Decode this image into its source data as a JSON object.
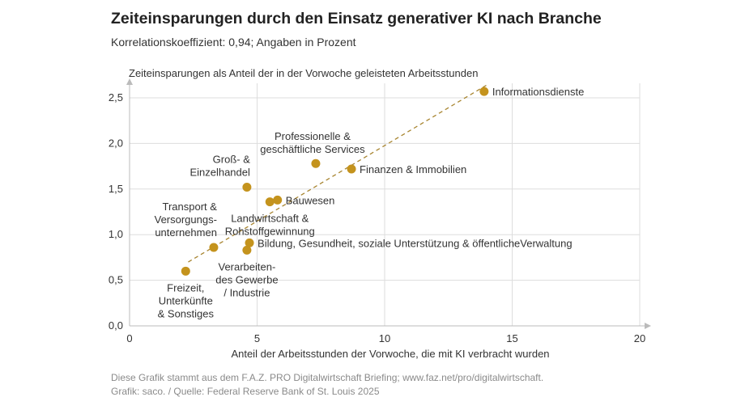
{
  "title": "Zeiteinsparungen durch den Einsatz generativer KI nach Branche",
  "subtitle": "Korrelationskoeffizient: 0,94; Angaben in Prozent",
  "footer": {
    "line1": "Diese Grafik stammt aus dem F.A.Z. PRO Digitalwirtschaft Briefing; www.faz.net/pro/digitalwirtschaft.",
    "line2": "Grafik: saco. / Quelle: Federal Reserve Bank of St. Louis 2025"
  },
  "colors": {
    "points": "#c4931d",
    "trend": "#a88530",
    "grid": "#dddddd",
    "axis": "#bbbbbb",
    "text": "#333333"
  },
  "chart_data": {
    "type": "scatter",
    "xlabel": "Anteil der Arbeitsstunden der Vorwoche, die mit KI verbracht wurden",
    "ylabel": "Zeiteinsparungen als Anteil der in der Vorwoche geleisteten Arbeitsstunden",
    "xlim": [
      0,
      20
    ],
    "ylim": [
      0,
      2.6
    ],
    "x_ticks": [
      0,
      5,
      10,
      15,
      20
    ],
    "x_tick_labels": [
      "0",
      "5",
      "10",
      "15",
      "20"
    ],
    "y_ticks": [
      0,
      0.5,
      1.0,
      1.5,
      2.0,
      2.5
    ],
    "y_tick_labels": [
      "0,0",
      "0,5",
      "1,0",
      "1,5",
      "2,0",
      "2,5"
    ],
    "grid": true,
    "trendline": {
      "style": "dashed",
      "from": [
        2.3,
        0.7
      ],
      "to": [
        14,
        2.64
      ]
    },
    "points": [
      {
        "label": [
          "Informationsdienste"
        ],
        "x": 13.9,
        "y": 2.57,
        "anchor": "right"
      },
      {
        "label": [
          "Professionelle &",
          "geschäftliche Services"
        ],
        "x": 7.3,
        "y": 1.78,
        "anchor": "above"
      },
      {
        "label": [
          "Finanzen & Immobilien"
        ],
        "x": 8.7,
        "y": 1.72,
        "anchor": "right"
      },
      {
        "label": [
          "Groß- &",
          "Einzelhandel"
        ],
        "x": 4.6,
        "y": 1.52,
        "anchor": "above-left"
      },
      {
        "label": [
          "Bauwesen"
        ],
        "x": 5.8,
        "y": 1.38,
        "anchor": "right"
      },
      {
        "label": [
          "Landwirtschaft &",
          "Rohstoffgewinnung"
        ],
        "x": 5.5,
        "y": 1.36,
        "anchor": "below"
      },
      {
        "label": [
          "Bildung, Gesundheit, soziale Unterstützung & öffentlicheVerwaltung"
        ],
        "x": 4.7,
        "y": 0.91,
        "anchor": "right"
      },
      {
        "label": [
          "Transport &",
          "Versorgungs-",
          "unternehmen"
        ],
        "x": 3.3,
        "y": 0.86,
        "anchor": "above-left"
      },
      {
        "label": [
          "Verarbeiten-",
          "des Gewerbe",
          "/ Industrie"
        ],
        "x": 4.6,
        "y": 0.83,
        "anchor": "below"
      },
      {
        "label": [
          "Freizeit,",
          "Unterkünfte",
          "& Sonstiges"
        ],
        "x": 2.2,
        "y": 0.6,
        "anchor": "below"
      }
    ]
  }
}
